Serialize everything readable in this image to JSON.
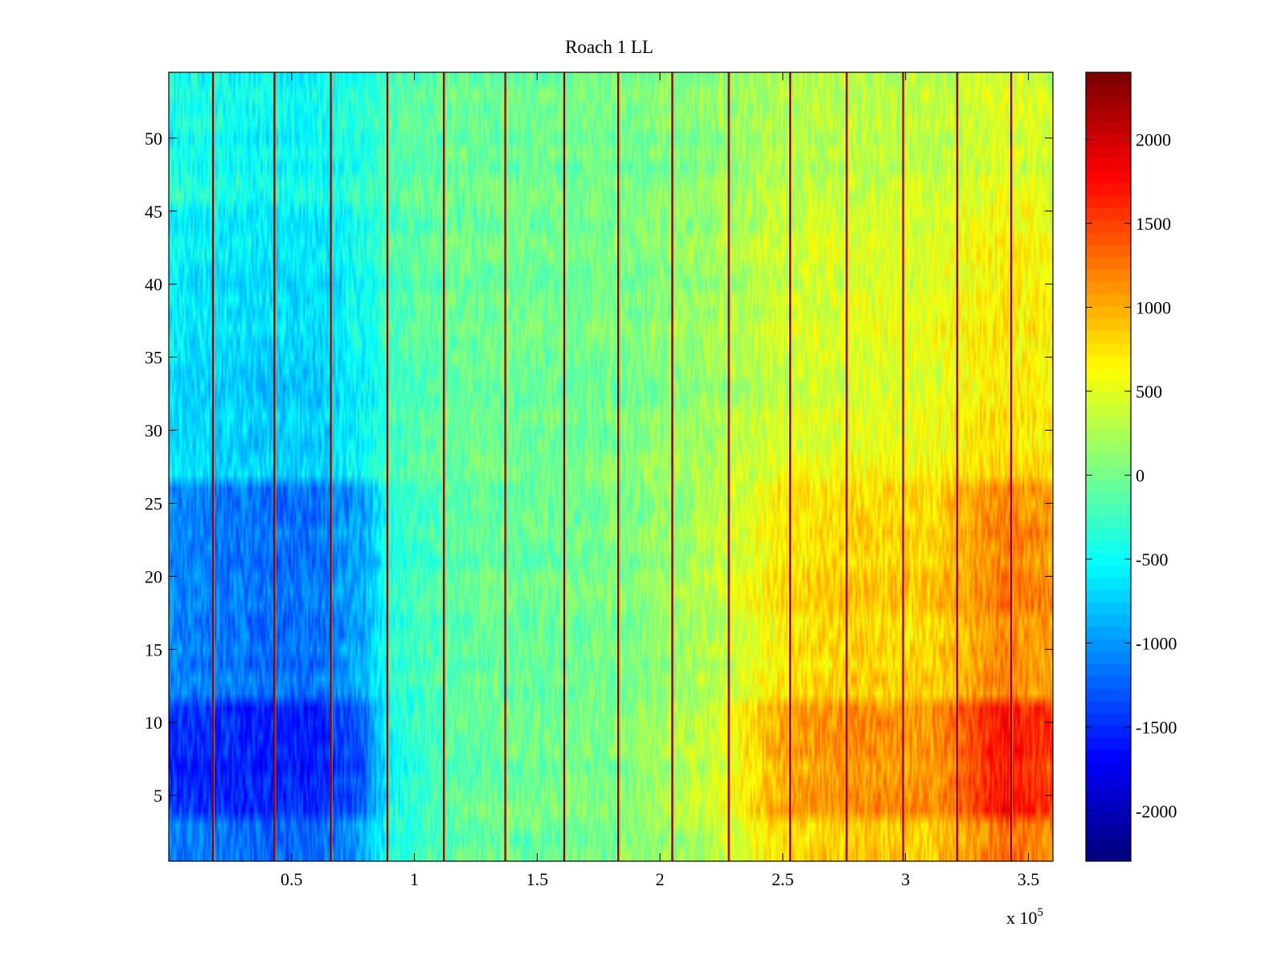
{
  "chart_data": {
    "type": "heatmap",
    "title": "Roach 1 LL",
    "xlabel": "",
    "ylabel": "",
    "x_exponent_label": "x 10",
    "x_exponent_power": "5",
    "xlim": [
      0,
      3.6
    ],
    "ylim": [
      0.5,
      54.5
    ],
    "x_scale": 100000,
    "x_ticks": [
      0.5,
      1,
      1.5,
      2,
      2.5,
      3,
      3.5
    ],
    "x_tick_labels": [
      "0.5",
      "1",
      "1.5",
      "2",
      "2.5",
      "3",
      "3.5"
    ],
    "y_ticks": [
      5,
      10,
      15,
      20,
      25,
      30,
      35,
      40,
      45,
      50
    ],
    "y_tick_labels": [
      "5",
      "10",
      "15",
      "20",
      "25",
      "30",
      "35",
      "40",
      "45",
      "50"
    ],
    "n_rows": 54,
    "colormap": "jet",
    "colorbar": {
      "clim": [
        -2300,
        2400
      ],
      "ticks": [
        -2000,
        -1500,
        -1000,
        -500,
        0,
        500,
        1000,
        1500,
        2000
      ],
      "tick_labels": [
        "-2000",
        "-1500",
        "-1000",
        "-500",
        "0",
        "500",
        "1000",
        "1500",
        "2000"
      ]
    },
    "trend_x": [
      0,
      0.2,
      0.45,
      0.65,
      0.8,
      1.0,
      1.3,
      1.6,
      1.9,
      2.2,
      2.5,
      2.8,
      3.1,
      3.4,
      3.6
    ],
    "trend_values": [
      -650,
      -750,
      -850,
      -800,
      -450,
      -150,
      -50,
      -50,
      50,
      250,
      450,
      550,
      650,
      800,
      700
    ],
    "low_row_band_x": [
      0,
      0.3,
      0.6,
      0.8,
      0.9,
      1.2,
      1.8,
      2.2,
      2.5,
      2.8,
      3.1,
      3.4,
      3.6
    ],
    "low_row_band_values": [
      -1500,
      -1600,
      -1600,
      -1300,
      -500,
      -100,
      0,
      350,
      1000,
      1150,
      1050,
      1700,
      1500
    ],
    "spike_columns_x": [
      0.18,
      0.43,
      0.66,
      0.89,
      1.12,
      1.37,
      1.61,
      1.83,
      2.05,
      2.28,
      2.53,
      2.76,
      2.99,
      3.21,
      3.43
    ]
  }
}
